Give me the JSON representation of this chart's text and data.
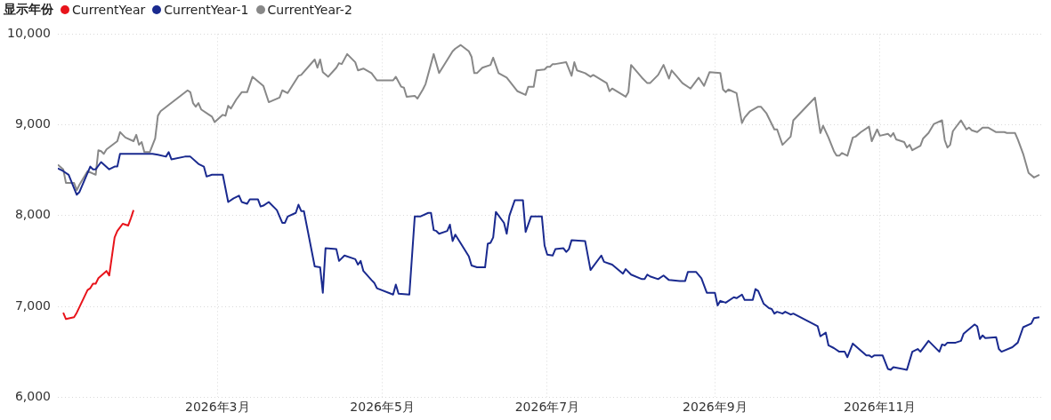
{
  "chart_data": {
    "type": "line",
    "legend_title": "显示年份",
    "legend": "top left",
    "grid": true,
    "xlim": [
      "2026-01-01",
      "2026-12-31"
    ],
    "xticks": [
      {
        "value": "2026-03-01",
        "label": "2026年3月"
      },
      {
        "value": "2026-05-01",
        "label": "2026年5月"
      },
      {
        "value": "2026-07-01",
        "label": "2026年7月"
      },
      {
        "value": "2026-09-01",
        "label": "2026年9月"
      },
      {
        "value": "2026-11-01",
        "label": "2026年11月"
      }
    ],
    "ylim": [
      6000,
      10000
    ],
    "yticks": [
      {
        "value": 6000,
        "label": "6,000"
      },
      {
        "value": 7000,
        "label": "7,000"
      },
      {
        "value": 8000,
        "label": "8,000"
      },
      {
        "value": 9000,
        "label": "9,000"
      },
      {
        "value": 10000,
        "label": "10,000"
      }
    ],
    "series": [
      {
        "name": "CurrentYear",
        "color": "#e8141b",
        "x": [
          "2026-01-03",
          "2026-01-04",
          "2026-01-07",
          "2026-01-08",
          "2026-01-12",
          "2026-01-13",
          "2026-01-14",
          "2026-01-15",
          "2026-01-16",
          "2026-01-19",
          "2026-01-20",
          "2026-01-22",
          "2026-01-23",
          "2026-01-25",
          "2026-01-27",
          "2026-01-28",
          "2026-01-29"
        ],
        "values": [
          6930,
          6860,
          6880,
          6930,
          7180,
          7200,
          7250,
          7250,
          7310,
          7390,
          7340,
          7760,
          7830,
          7910,
          7890,
          7970,
          8060
        ]
      },
      {
        "name": "CurrentYear-1",
        "color": "#1a2a8f",
        "x": [
          "2026-01-01",
          "2026-01-03",
          "2026-01-05",
          "2026-01-08",
          "2026-01-09",
          "2026-01-13",
          "2026-01-14",
          "2026-01-15",
          "2026-01-17",
          "2026-01-20",
          "2026-01-22",
          "2026-01-23",
          "2026-01-24",
          "2026-02-04",
          "2026-02-05",
          "2026-02-07",
          "2026-02-10",
          "2026-02-11",
          "2026-02-12",
          "2026-02-17",
          "2026-02-19",
          "2026-02-22",
          "2026-02-24",
          "2026-02-25",
          "2026-02-27",
          "2026-03-03",
          "2026-03-05",
          "2026-03-07",
          "2026-03-09",
          "2026-03-10",
          "2026-03-12",
          "2026-03-13",
          "2026-03-16",
          "2026-03-17",
          "2026-03-18",
          "2026-03-20",
          "2026-03-23",
          "2026-03-25",
          "2026-03-26",
          "2026-03-27",
          "2026-03-30",
          "2026-03-31",
          "2026-04-01",
          "2026-04-02",
          "2026-04-06",
          "2026-04-08",
          "2026-04-09",
          "2026-04-10",
          "2026-04-14",
          "2026-04-15",
          "2026-04-17",
          "2026-04-21",
          "2026-04-22",
          "2026-04-23",
          "2026-04-24",
          "2026-04-27",
          "2026-04-28",
          "2026-04-29",
          "2026-05-05",
          "2026-05-06",
          "2026-05-07",
          "2026-05-11",
          "2026-05-13",
          "2026-05-15",
          "2026-05-18",
          "2026-05-19",
          "2026-05-20",
          "2026-05-21",
          "2026-05-22",
          "2026-05-25",
          "2026-05-26",
          "2026-05-27",
          "2026-05-28",
          "2026-06-02",
          "2026-06-03",
          "2026-06-05",
          "2026-06-08",
          "2026-06-09",
          "2026-06-10",
          "2026-06-11",
          "2026-06-12",
          "2026-06-15",
          "2026-06-16",
          "2026-06-17",
          "2026-06-19",
          "2026-06-22",
          "2026-06-23",
          "2026-06-25",
          "2026-06-29",
          "2026-06-30",
          "2026-07-01",
          "2026-07-03",
          "2026-07-04",
          "2026-07-07",
          "2026-07-08",
          "2026-07-09",
          "2026-07-10",
          "2026-07-15",
          "2026-07-17",
          "2026-07-21",
          "2026-07-22",
          "2026-07-24",
          "2026-07-25",
          "2026-07-29",
          "2026-07-30",
          "2026-08-01",
          "2026-08-05",
          "2026-08-06",
          "2026-08-07",
          "2026-08-08",
          "2026-08-11",
          "2026-08-13",
          "2026-08-15",
          "2026-08-19",
          "2026-08-21",
          "2026-08-22",
          "2026-08-25",
          "2026-08-27",
          "2026-08-29",
          "2026-09-01",
          "2026-09-02",
          "2026-09-03",
          "2026-09-05",
          "2026-09-08",
          "2026-09-09",
          "2026-09-11",
          "2026-09-12",
          "2026-09-15",
          "2026-09-16",
          "2026-09-17",
          "2026-09-19",
          "2026-09-21",
          "2026-09-22",
          "2026-09-23",
          "2026-09-24",
          "2026-09-26",
          "2026-09-27",
          "2026-09-29",
          "2026-09-30",
          "2026-10-09",
          "2026-10-10",
          "2026-10-12",
          "2026-10-13",
          "2026-10-15",
          "2026-10-17",
          "2026-10-19",
          "2026-10-20",
          "2026-10-22",
          "2026-10-27",
          "2026-10-28",
          "2026-10-29",
          "2026-10-30",
          "2026-11-02",
          "2026-11-04",
          "2026-11-05",
          "2026-11-06",
          "2026-11-11",
          "2026-11-13",
          "2026-11-15",
          "2026-11-16",
          "2026-11-19",
          "2026-11-23",
          "2026-11-24",
          "2026-11-25",
          "2026-11-26",
          "2026-11-29",
          "2026-12-01",
          "2026-12-02",
          "2026-12-06",
          "2026-12-07",
          "2026-12-08",
          "2026-12-09",
          "2026-12-10",
          "2026-12-14",
          "2026-12-15",
          "2026-12-16",
          "2026-12-20",
          "2026-12-22",
          "2026-12-24",
          "2026-12-27",
          "2026-12-28",
          "2026-12-30"
        ],
        "values": [
          8520,
          8490,
          8450,
          8230,
          8260,
          8540,
          8510,
          8510,
          8590,
          8510,
          8540,
          8540,
          8680,
          8680,
          8680,
          8670,
          8650,
          8700,
          8620,
          8650,
          8650,
          8570,
          8540,
          8430,
          8450,
          8450,
          8150,
          8190,
          8220,
          8150,
          8130,
          8180,
          8180,
          8100,
          8110,
          8150,
          8060,
          7920,
          7920,
          7990,
          8030,
          8120,
          8050,
          8050,
          7440,
          7430,
          7150,
          7640,
          7630,
          7500,
          7560,
          7520,
          7460,
          7500,
          7390,
          7290,
          7260,
          7200,
          7130,
          7240,
          7140,
          7130,
          7990,
          7990,
          8030,
          8030,
          7840,
          7830,
          7800,
          7830,
          7900,
          7720,
          7790,
          7550,
          7450,
          7430,
          7430,
          7690,
          7700,
          7760,
          8040,
          7920,
          7800,
          8000,
          8170,
          8170,
          7820,
          7990,
          7990,
          7670,
          7570,
          7560,
          7630,
          7640,
          7600,
          7630,
          7730,
          7720,
          7400,
          7560,
          7490,
          7470,
          7460,
          7360,
          7410,
          7350,
          7300,
          7300,
          7350,
          7330,
          7300,
          7340,
          7290,
          7280,
          7280,
          7380,
          7380,
          7310,
          7150,
          7150,
          7010,
          7060,
          7040,
          7100,
          7090,
          7130,
          7070,
          7070,
          7190,
          7170,
          7030,
          6980,
          6970,
          6920,
          6940,
          6920,
          6940,
          6910,
          6920,
          6780,
          6670,
          6710,
          6570,
          6540,
          6500,
          6500,
          6440,
          6590,
          6460,
          6460,
          6440,
          6460,
          6460,
          6310,
          6300,
          6330,
          6300,
          6500,
          6530,
          6500,
          6620,
          6500,
          6580,
          6570,
          6600,
          6600,
          6620,
          6700,
          6800,
          6780,
          6640,
          6680,
          6650,
          6660,
          6530,
          6500,
          6550,
          6600,
          6770,
          6810,
          6870,
          6880
        ]
      },
      {
        "name": "CurrentYear-2",
        "color": "#888888",
        "x": [
          "2026-01-01",
          "2026-01-03",
          "2026-01-04",
          "2026-01-07",
          "2026-01-08",
          "2026-01-09",
          "2026-01-12",
          "2026-01-15",
          "2026-01-16",
          "2026-01-17",
          "2026-01-18",
          "2026-01-19",
          "2026-01-23",
          "2026-01-24",
          "2026-01-25",
          "2026-01-26",
          "2026-01-29",
          "2026-01-30",
          "2026-01-31",
          "2026-02-01",
          "2026-02-02",
          "2026-02-04",
          "2026-02-06",
          "2026-02-07",
          "2026-02-08",
          "2026-02-18",
          "2026-02-19",
          "2026-02-20",
          "2026-02-21",
          "2026-02-22",
          "2026-02-23",
          "2026-02-26",
          "2026-02-27",
          "2026-02-28",
          "2026-03-03",
          "2026-03-04",
          "2026-03-05",
          "2026-03-06",
          "2026-03-08",
          "2026-03-10",
          "2026-03-12",
          "2026-03-14",
          "2026-03-18",
          "2026-03-20",
          "2026-03-24",
          "2026-03-25",
          "2026-03-27",
          "2026-03-31",
          "2026-04-01",
          "2026-04-06",
          "2026-04-07",
          "2026-04-08",
          "2026-04-09",
          "2026-04-11",
          "2026-04-14",
          "2026-04-15",
          "2026-04-16",
          "2026-04-18",
          "2026-04-21",
          "2026-04-22",
          "2026-04-24",
          "2026-04-27",
          "2026-04-29",
          "2026-05-05",
          "2026-05-06",
          "2026-05-08",
          "2026-05-09",
          "2026-05-10",
          "2026-05-13",
          "2026-05-14",
          "2026-05-16",
          "2026-05-17",
          "2026-05-20",
          "2026-05-22",
          "2026-05-27",
          "2026-05-28",
          "2026-05-30",
          "2026-06-02",
          "2026-06-03",
          "2026-06-04",
          "2026-06-05",
          "2026-06-07",
          "2026-06-10",
          "2026-06-11",
          "2026-06-13",
          "2026-06-16",
          "2026-06-20",
          "2026-06-23",
          "2026-06-24",
          "2026-06-26",
          "2026-06-27",
          "2026-06-30",
          "2026-07-01",
          "2026-07-02",
          "2026-07-03",
          "2026-07-04",
          "2026-07-08",
          "2026-07-10",
          "2026-07-11",
          "2026-07-12",
          "2026-07-15",
          "2026-07-17",
          "2026-07-18",
          "2026-07-23",
          "2026-07-24",
          "2026-07-25",
          "2026-07-30",
          "2026-07-31",
          "2026-08-01",
          "2026-08-05",
          "2026-08-07",
          "2026-08-08",
          "2026-08-11",
          "2026-08-13",
          "2026-08-15",
          "2026-08-16",
          "2026-08-18",
          "2026-08-20",
          "2026-08-23",
          "2026-08-26",
          "2026-08-28",
          "2026-08-30",
          "2026-09-03",
          "2026-09-04",
          "2026-09-05",
          "2026-09-06",
          "2026-09-09",
          "2026-09-11",
          "2026-09-12",
          "2026-09-14",
          "2026-09-17",
          "2026-09-18",
          "2026-09-20",
          "2026-09-23",
          "2026-09-24",
          "2026-09-26",
          "2026-09-29",
          "2026-09-30",
          "2026-10-08",
          "2026-10-10",
          "2026-10-11",
          "2026-10-13",
          "2026-10-15",
          "2026-10-16",
          "2026-10-17",
          "2026-10-18",
          "2026-10-20",
          "2026-10-22",
          "2026-10-23",
          "2026-10-25",
          "2026-10-28",
          "2026-10-29",
          "2026-10-31",
          "2026-11-01",
          "2026-11-04",
          "2026-11-05",
          "2026-11-06",
          "2026-11-07",
          "2026-11-10",
          "2026-11-11",
          "2026-11-12",
          "2026-11-13",
          "2026-11-16",
          "2026-11-17",
          "2026-11-19",
          "2026-11-21",
          "2026-11-24",
          "2026-11-25",
          "2026-11-26",
          "2026-11-27",
          "2026-11-28",
          "2026-12-01",
          "2026-12-03",
          "2026-12-04",
          "2026-12-05",
          "2026-12-07",
          "2026-12-09",
          "2026-12-11",
          "2026-12-14",
          "2026-12-17",
          "2026-12-18",
          "2026-12-21",
          "2026-12-22",
          "2026-12-24",
          "2026-12-26",
          "2026-12-28",
          "2026-12-30"
        ],
        "values": [
          8560,
          8510,
          8360,
          8360,
          8280,
          8340,
          8490,
          8450,
          8720,
          8710,
          8680,
          8730,
          8820,
          8920,
          8890,
          8860,
          8820,
          8890,
          8780,
          8810,
          8700,
          8700,
          8850,
          9100,
          9150,
          9380,
          9360,
          9240,
          9200,
          9240,
          9170,
          9110,
          9090,
          9030,
          9110,
          9100,
          9210,
          9180,
          9280,
          9360,
          9360,
          9530,
          9430,
          9250,
          9300,
          9380,
          9350,
          9540,
          9550,
          9720,
          9630,
          9720,
          9580,
          9530,
          9630,
          9680,
          9670,
          9780,
          9690,
          9600,
          9620,
          9570,
          9490,
          9490,
          9530,
          9420,
          9410,
          9310,
          9320,
          9290,
          9390,
          9450,
          9780,
          9570,
          9810,
          9840,
          9880,
          9810,
          9750,
          9570,
          9570,
          9630,
          9660,
          9740,
          9570,
          9520,
          9370,
          9330,
          9420,
          9420,
          9600,
          9610,
          9640,
          9640,
          9670,
          9670,
          9690,
          9540,
          9690,
          9600,
          9570,
          9530,
          9550,
          9460,
          9370,
          9400,
          9310,
          9360,
          9660,
          9520,
          9460,
          9460,
          9550,
          9660,
          9510,
          9600,
          9530,
          9460,
          9400,
          9520,
          9430,
          9580,
          9570,
          9390,
          9360,
          9390,
          9350,
          9020,
          9080,
          9150,
          9200,
          9200,
          9130,
          8950,
          8950,
          8780,
          8870,
          9050,
          9300,
          8910,
          8990,
          8860,
          8710,
          8660,
          8660,
          8690,
          8660,
          8860,
          8870,
          8920,
          8980,
          8820,
          8950,
          8880,
          8900,
          8870,
          8910,
          8840,
          8810,
          8750,
          8780,
          8720,
          8770,
          8850,
          8910,
          9010,
          9050,
          8830,
          8750,
          8780,
          8930,
          9050,
          8950,
          8970,
          8940,
          8920,
          8970,
          8970,
          8920,
          8920,
          8910,
          8910,
          8840,
          8680,
          8470,
          8420,
          8450
        ]
      }
    ]
  }
}
